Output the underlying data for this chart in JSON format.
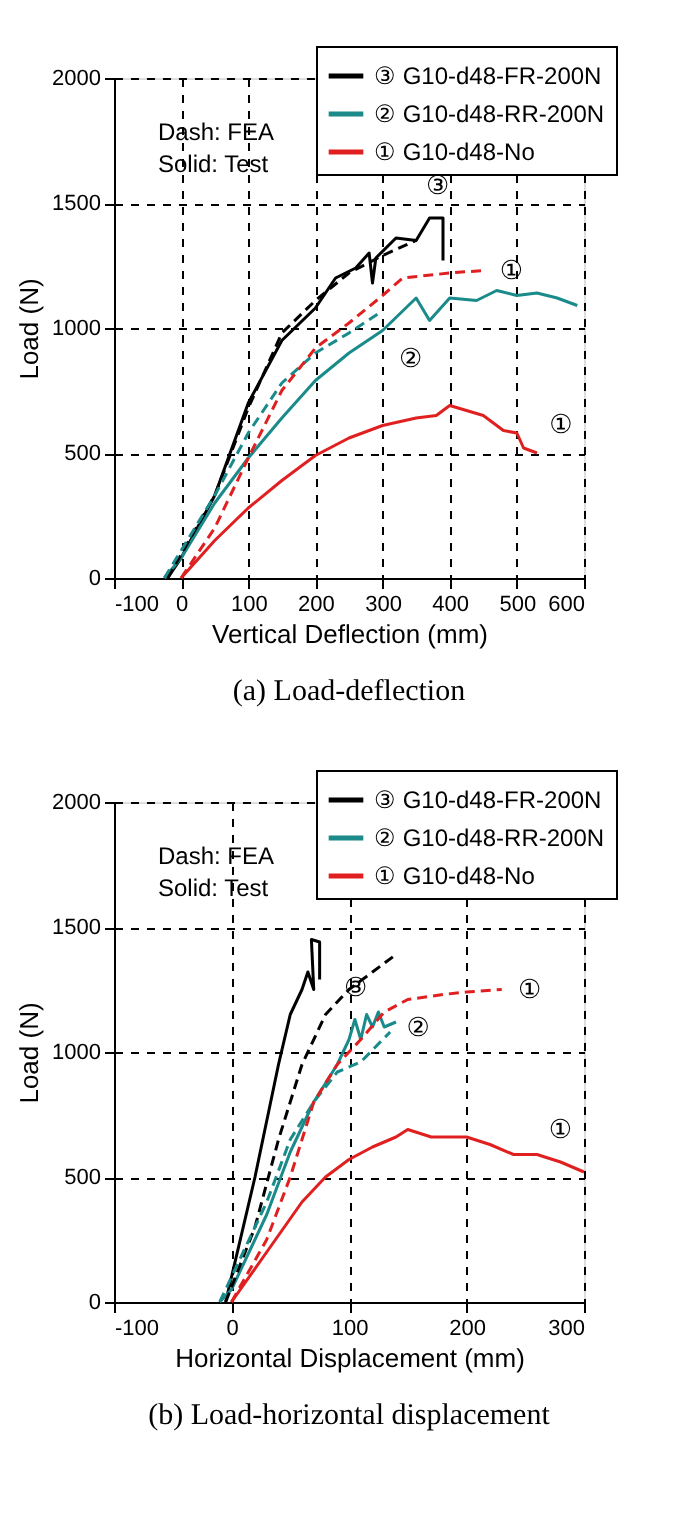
{
  "chart_data": [
    {
      "type": "line",
      "title": "(a) Load-deflection",
      "xlabel": "Vertical Deflection (mm)",
      "ylabel": "Load (N)",
      "xlim": [
        -100,
        600
      ],
      "xticks": [
        -100,
        0,
        100,
        200,
        300,
        400,
        500,
        600
      ],
      "ylim": [
        0,
        2000
      ],
      "yticks": [
        0,
        500,
        1000,
        1500,
        2000
      ],
      "grid": true,
      "legend": "top right",
      "marker": "none",
      "series": [
        {
          "name": "③ G10-d48-FR-200N",
          "color": "#000000",
          "line_style": "solid",
          "x": [
            -20,
            0,
            50,
            100,
            150,
            200,
            230,
            260,
            280,
            285,
            290,
            320,
            350,
            370,
            390,
            390
          ],
          "values": [
            0,
            80,
            330,
            700,
            950,
            1080,
            1200,
            1240,
            1300,
            1180,
            1280,
            1360,
            1350,
            1440,
            1440,
            1270
          ]
        },
        {
          "name": "② G10-d48-RR-200N",
          "color": "#1a8a8a",
          "line_style": "solid",
          "x": [
            -25,
            0,
            50,
            100,
            150,
            200,
            250,
            300,
            350,
            370,
            400,
            440,
            470,
            500,
            530,
            560,
            590
          ],
          "values": [
            0,
            80,
            300,
            480,
            640,
            790,
            900,
            990,
            1120,
            1030,
            1120,
            1110,
            1150,
            1130,
            1140,
            1120,
            1090
          ]
        },
        {
          "name": "① G10-d48-No",
          "color": "#e02020",
          "line_style": "solid",
          "x": [
            0,
            50,
            100,
            150,
            200,
            250,
            300,
            350,
            380,
            400,
            450,
            480,
            500,
            510,
            530
          ],
          "values": [
            0,
            150,
            280,
            390,
            490,
            560,
            610,
            640,
            650,
            690,
            650,
            590,
            580,
            520,
            500
          ]
        },
        {
          "color": "#000000",
          "line_style": "dashed",
          "x": [
            -20,
            50,
            100,
            150,
            200,
            250,
            300,
            350
          ],
          "values": [
            0,
            330,
            680,
            980,
            1110,
            1220,
            1290,
            1350
          ]
        },
        {
          "color": "#1a8a8a",
          "line_style": "dashed",
          "x": [
            -25,
            50,
            100,
            150,
            200,
            250,
            295
          ],
          "values": [
            0,
            330,
            580,
            780,
            900,
            980,
            1060
          ]
        },
        {
          "color": "#e02020",
          "line_style": "dashed",
          "x": [
            0,
            50,
            100,
            150,
            200,
            250,
            300,
            330,
            400,
            450
          ],
          "values": [
            0,
            200,
            480,
            750,
            920,
            1020,
            1130,
            1200,
            1220,
            1230
          ]
        }
      ],
      "annotations": [
        "Dash: FEA",
        "Solid: Test",
        {
          "text": "③",
          "x": 370,
          "y": 1440
        },
        {
          "text": "②",
          "x": 300,
          "y": 990
        },
        {
          "text": "①",
          "x": 450,
          "y": 1230
        },
        {
          "text": "①",
          "x": 530,
          "y": 500
        }
      ]
    },
    {
      "type": "line",
      "title": "(b) Load-horizontal displacement",
      "xlabel": "Horizontal Displacement (mm)",
      "ylabel": "Load (N)",
      "xlim": [
        -100,
        300
      ],
      "xticks": [
        -100,
        0,
        100,
        200,
        300
      ],
      "ylim": [
        0,
        2000
      ],
      "yticks": [
        0,
        500,
        1000,
        1500,
        2000
      ],
      "grid": true,
      "legend": "top right",
      "marker": "none",
      "series": [
        {
          "name": "③ G10-d48-FR-200N",
          "color": "#000000",
          "line_style": "solid",
          "x": [
            -5,
            0,
            20,
            40,
            50,
            60,
            65,
            70,
            68,
            75,
            75
          ],
          "values": [
            0,
            100,
            500,
            950,
            1150,
            1250,
            1320,
            1250,
            1450,
            1440,
            1290
          ]
        },
        {
          "name": "② G10-d48-RR-200N",
          "color": "#1a8a8a",
          "line_style": "solid",
          "x": [
            -10,
            0,
            30,
            50,
            70,
            90,
            100,
            105,
            110,
            115,
            120,
            125,
            130,
            140
          ],
          "values": [
            0,
            50,
            350,
            600,
            800,
            950,
            1050,
            1130,
            1050,
            1150,
            1100,
            1160,
            1100,
            1120
          ]
        },
        {
          "name": "① G10-d48-No",
          "color": "#e02020",
          "line_style": "solid",
          "x": [
            0,
            30,
            60,
            80,
            100,
            120,
            140,
            150,
            170,
            200,
            220,
            240,
            260,
            280,
            300
          ],
          "values": [
            0,
            200,
            400,
            500,
            570,
            620,
            660,
            690,
            660,
            660,
            630,
            590,
            590,
            560,
            520
          ]
        },
        {
          "color": "#000000",
          "line_style": "dashed",
          "x": [
            -5,
            20,
            40,
            60,
            80,
            100,
            120,
            140
          ],
          "values": [
            0,
            300,
            650,
            950,
            1150,
            1250,
            1320,
            1390
          ]
        },
        {
          "color": "#1a8a8a",
          "line_style": "dashed",
          "x": [
            -10,
            30,
            50,
            70,
            90,
            110,
            135
          ],
          "values": [
            0,
            400,
            650,
            800,
            920,
            960,
            1080
          ]
        },
        {
          "color": "#e02020",
          "line_style": "dashed",
          "x": [
            0,
            30,
            50,
            70,
            90,
            110,
            130,
            150,
            180,
            200,
            230
          ],
          "values": [
            0,
            250,
            500,
            800,
            950,
            1050,
            1160,
            1210,
            1230,
            1240,
            1250
          ]
        }
      ],
      "annotations": [
        "Dash: FEA",
        "Solid: Test",
        {
          "text": "③",
          "x": 75,
          "y": 1290
        },
        {
          "text": "②",
          "x": 135,
          "y": 1080
        },
        {
          "text": "①",
          "x": 230,
          "y": 1250
        },
        {
          "text": "①",
          "x": 280,
          "y": 560
        }
      ]
    }
  ]
}
